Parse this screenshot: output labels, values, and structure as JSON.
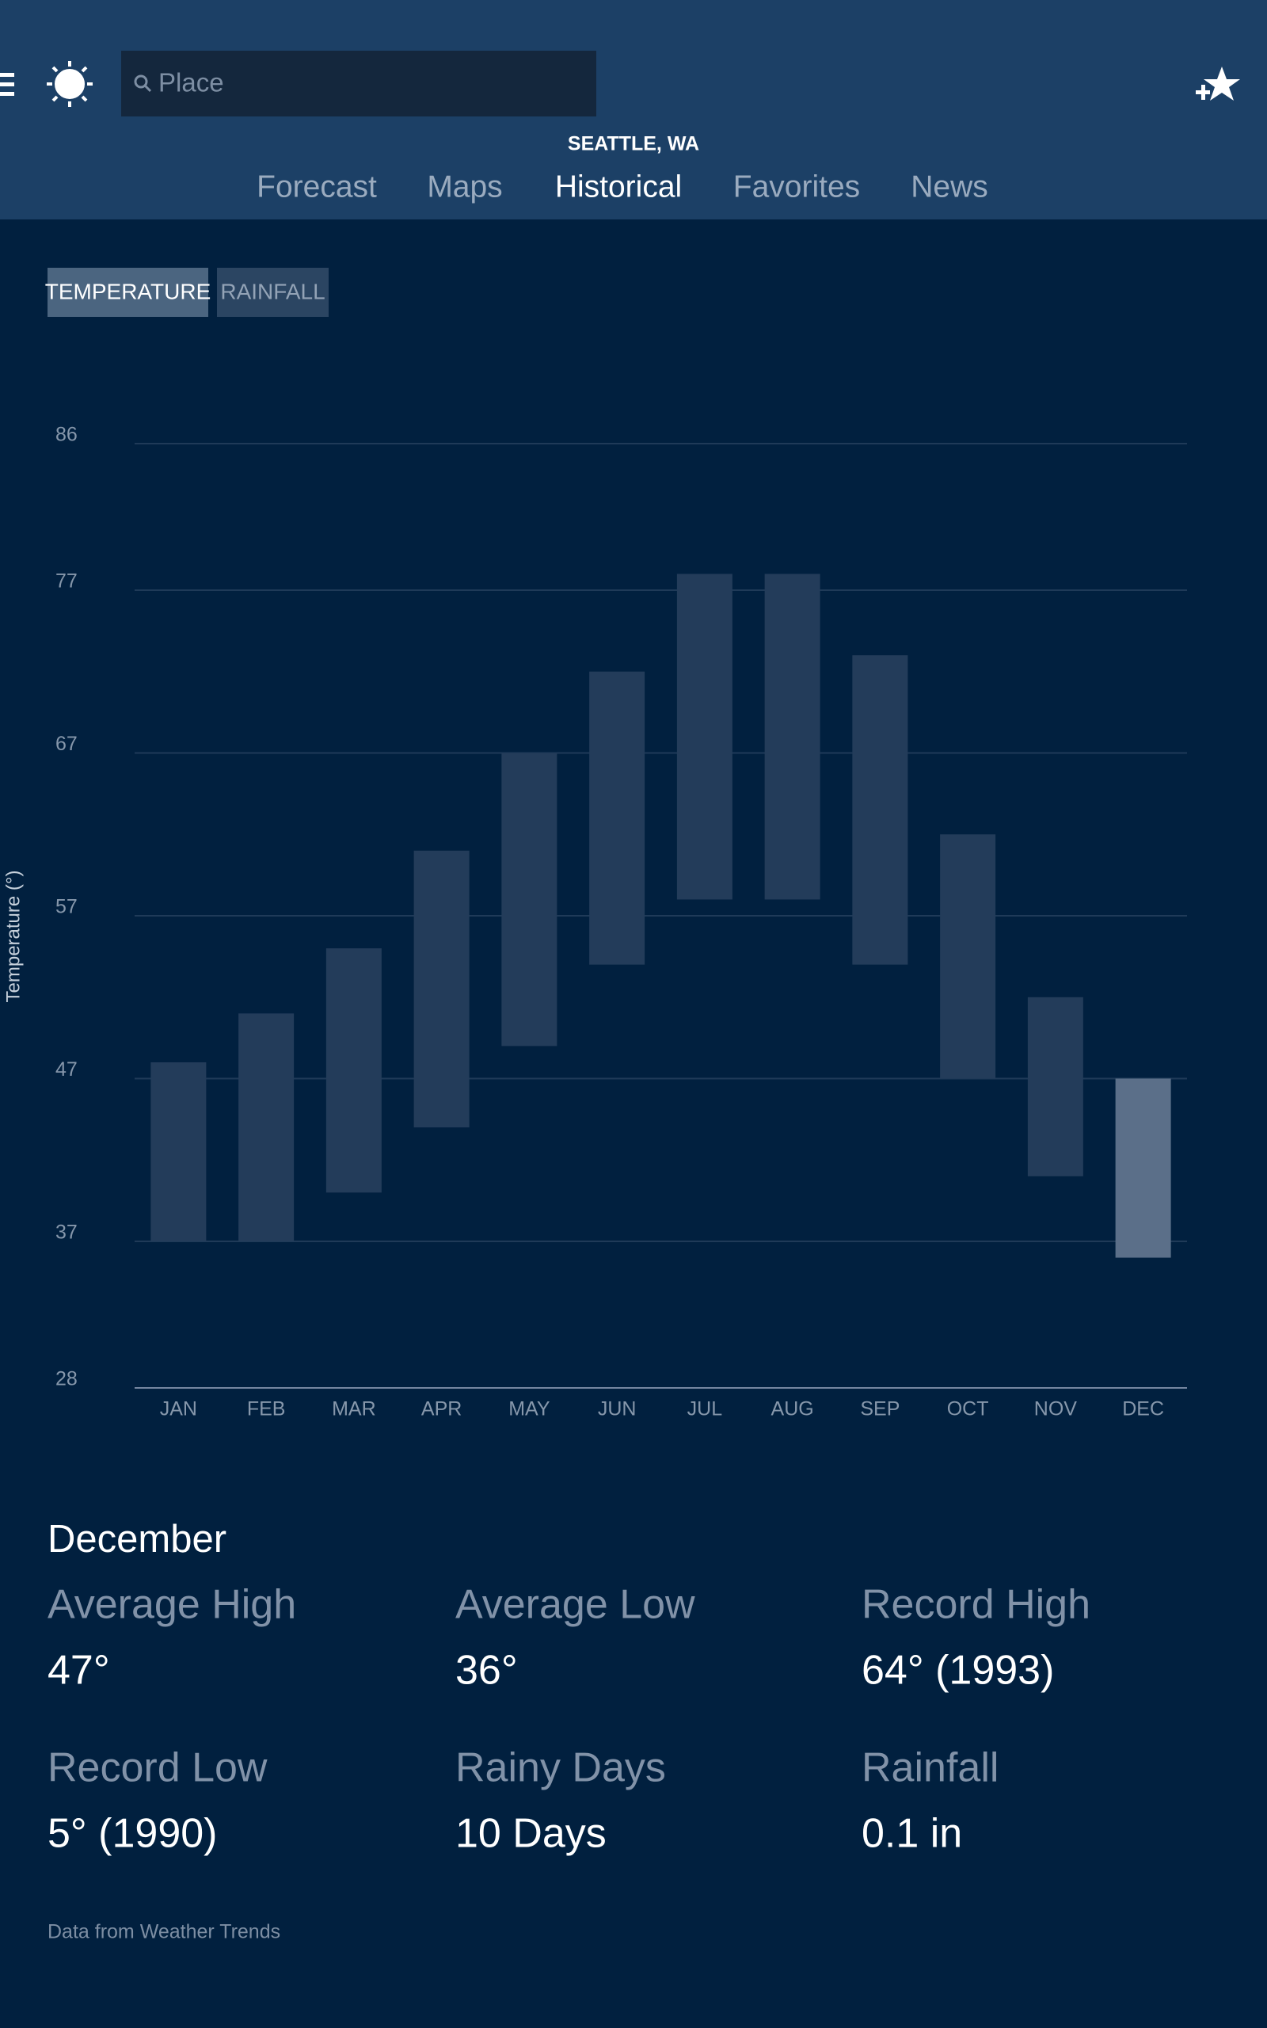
{
  "header": {
    "search_placeholder": "Place",
    "location": "SEATTLE, WA",
    "nav": [
      "Forecast",
      "Maps",
      "Historical",
      "Favorites",
      "News"
    ],
    "active_nav_index": 2
  },
  "tabs": {
    "items": [
      "TEMPERATURE",
      "RAINFALL"
    ],
    "active_index": 0
  },
  "chart_data": {
    "type": "bar",
    "y_label": "Temperature (°)",
    "categories": [
      "JAN",
      "FEB",
      "MAR",
      "APR",
      "MAY",
      "JUN",
      "JUL",
      "AUG",
      "SEP",
      "OCT",
      "NOV",
      "DEC"
    ],
    "low": [
      37,
      37,
      40,
      44,
      49,
      54,
      58,
      58,
      54,
      47,
      41,
      36
    ],
    "high": [
      48,
      51,
      55,
      61,
      67,
      72,
      78,
      78,
      73,
      62,
      52,
      47
    ],
    "color": "#233c5a",
    "highlight_color": "#5b6f89",
    "highlight_index": 11,
    "ylim": [
      28,
      86
    ],
    "yticks": [
      28,
      37,
      47,
      57,
      67,
      77,
      86
    ],
    "grid": true
  },
  "details": {
    "title": "December",
    "stats": [
      {
        "label": "Average High",
        "value": "47°"
      },
      {
        "label": "Average Low",
        "value": "36°"
      },
      {
        "label": "Record High",
        "value": "64° (1993)"
      },
      {
        "label": "Record Low",
        "value": "5° (1990)"
      },
      {
        "label": "Rainy Days",
        "value": "10 Days"
      },
      {
        "label": "Rainfall",
        "value": "0.1 in"
      }
    ]
  },
  "footer": "Data from Weather Trends"
}
